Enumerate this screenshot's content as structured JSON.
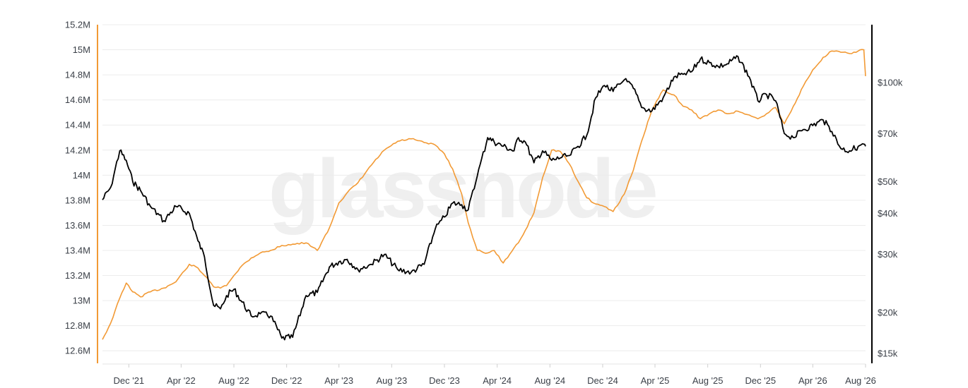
{
  "watermark": "glassnode",
  "chart_data": {
    "type": "line",
    "title": "",
    "xlabel": "",
    "ylabel_left": "",
    "ylabel_right": "",
    "x_ticks": [
      "Dec '21",
      "Apr '22",
      "Aug '22",
      "Dec '22",
      "Apr '23",
      "Aug '23",
      "Dec '23",
      "Apr '24",
      "Aug '24",
      "Dec '24",
      "Apr '25",
      "Aug '25",
      "Dec '25",
      "Apr '26",
      "Aug '26"
    ],
    "y_left": {
      "ticks": [
        "12.6M",
        "12.8M",
        "13M",
        "13.2M",
        "13.4M",
        "13.6M",
        "13.8M",
        "14M",
        "14.2M",
        "14.4M",
        "14.6M",
        "14.8M",
        "15M",
        "15.2M"
      ],
      "range": [
        12.5,
        15.2
      ],
      "unit": "M",
      "color": "#f29a35"
    },
    "y_right": {
      "ticks": [
        "$15k",
        "$20k",
        "$30k",
        "$40k",
        "$50k",
        "$70k",
        "$100k"
      ],
      "tick_values": [
        15000,
        20000,
        30000,
        40000,
        50000,
        70000,
        100000
      ],
      "scale": "log",
      "range": [
        14000,
        150000
      ],
      "color": "#000000"
    },
    "x_range": [
      "2021-10-01",
      "2026-08-01"
    ],
    "grid": "horizontal",
    "legend": "none",
    "series": [
      {
        "axis": "left",
        "color": "#f29a35",
        "x": [
          "2021-10-01",
          "2021-10-20",
          "2021-11-10",
          "2021-11-25",
          "2021-12-10",
          "2021-12-28",
          "2022-01-20",
          "2022-02-20",
          "2022-03-20",
          "2022-04-20",
          "2022-05-10",
          "2022-05-25",
          "2022-06-15",
          "2022-07-01",
          "2022-07-15",
          "2022-08-01",
          "2022-08-20",
          "2022-09-10",
          "2022-10-01",
          "2022-10-25",
          "2022-11-20",
          "2022-12-15",
          "2023-01-15",
          "2023-02-10",
          "2023-03-10",
          "2023-04-01",
          "2023-04-20",
          "2023-05-15",
          "2023-06-15",
          "2023-07-15",
          "2023-08-15",
          "2023-09-15",
          "2023-10-15",
          "2023-11-10",
          "2023-12-01",
          "2023-12-20",
          "2024-01-10",
          "2024-01-25",
          "2024-02-15",
          "2024-03-10",
          "2024-03-25",
          "2024-04-15",
          "2024-05-10",
          "2024-05-20",
          "2024-06-05",
          "2024-06-25",
          "2024-07-15",
          "2024-08-05",
          "2024-08-25",
          "2024-09-15",
          "2024-10-05",
          "2024-10-25",
          "2024-11-15",
          "2024-12-05",
          "2024-12-25",
          "2025-01-20",
          "2025-02-10",
          "2025-03-01",
          "2025-03-25",
          "2025-04-20",
          "2025-05-15",
          "2025-06-05",
          "2025-06-25",
          "2025-07-15",
          "2025-08-05",
          "2025-08-25",
          "2025-09-15",
          "2025-10-10",
          "2025-11-05",
          "2025-11-25",
          "2025-12-15",
          "2026-01-05",
          "2026-01-25",
          "2026-02-15",
          "2026-03-10",
          "2026-04-01",
          "2026-04-25",
          "2026-05-15",
          "2026-06-05",
          "2026-06-25",
          "2026-07-15",
          "2026-07-28",
          "2026-08-01"
        ],
        "values": [
          12.69,
          12.82,
          13.02,
          13.14,
          13.07,
          13.03,
          13.07,
          13.1,
          13.15,
          13.29,
          13.26,
          13.2,
          13.11,
          13.1,
          13.12,
          13.2,
          13.28,
          13.34,
          13.38,
          13.4,
          13.44,
          13.45,
          13.46,
          13.4,
          13.58,
          13.78,
          13.86,
          13.94,
          14.08,
          14.2,
          14.27,
          14.29,
          14.26,
          14.24,
          14.17,
          14.05,
          13.85,
          13.62,
          13.4,
          13.38,
          13.4,
          13.3,
          13.42,
          13.46,
          13.56,
          13.7,
          13.98,
          14.2,
          14.19,
          14.09,
          13.95,
          13.82,
          13.77,
          13.75,
          13.71,
          13.85,
          14.04,
          14.27,
          14.52,
          14.68,
          14.64,
          14.55,
          14.52,
          14.45,
          14.49,
          14.52,
          14.49,
          14.51,
          14.48,
          14.45,
          14.49,
          14.54,
          14.41,
          14.55,
          14.71,
          14.84,
          14.94,
          14.99,
          14.98,
          14.97,
          14.99,
          15.0,
          14.79
        ]
      },
      {
        "axis": "right",
        "color": "#000000",
        "x": [
          "2021-10-01",
          "2021-10-20",
          "2021-11-10",
          "2021-11-25",
          "2021-12-10",
          "2021-12-28",
          "2022-01-20",
          "2022-02-20",
          "2022-03-20",
          "2022-04-20",
          "2022-05-10",
          "2022-05-25",
          "2022-06-15",
          "2022-07-01",
          "2022-07-15",
          "2022-08-01",
          "2022-08-20",
          "2022-09-10",
          "2022-10-01",
          "2022-10-25",
          "2022-11-20",
          "2022-12-15",
          "2023-01-15",
          "2023-02-10",
          "2023-03-10",
          "2023-04-01",
          "2023-04-20",
          "2023-05-15",
          "2023-06-15",
          "2023-07-15",
          "2023-08-15",
          "2023-09-15",
          "2023-10-15",
          "2023-11-10",
          "2023-12-01",
          "2023-12-20",
          "2024-01-10",
          "2024-01-25",
          "2024-02-15",
          "2024-03-10",
          "2024-03-25",
          "2024-04-15",
          "2024-05-10",
          "2024-05-20",
          "2024-06-05",
          "2024-06-25",
          "2024-07-15",
          "2024-08-05",
          "2024-08-25",
          "2024-09-15",
          "2024-10-05",
          "2024-10-25",
          "2024-11-15",
          "2024-12-05",
          "2024-12-25",
          "2025-01-20",
          "2025-02-10",
          "2025-03-01",
          "2025-03-25",
          "2025-04-20",
          "2025-05-15",
          "2025-06-05",
          "2025-06-25",
          "2025-07-15",
          "2025-08-05",
          "2025-08-25",
          "2025-09-15",
          "2025-10-10",
          "2025-11-05",
          "2025-11-25",
          "2025-12-15",
          "2026-01-05",
          "2026-01-25",
          "2026-02-15",
          "2026-03-10",
          "2026-04-01",
          "2026-04-25",
          "2026-05-15",
          "2026-06-05",
          "2026-06-25",
          "2026-07-15",
          "2026-07-28",
          "2026-08-01"
        ],
        "values": [
          44000,
          48000,
          62000,
          58000,
          50000,
          47000,
          42000,
          38000,
          42000,
          40000,
          33000,
          29500,
          21000,
          20500,
          22500,
          23500,
          21500,
          19500,
          19800,
          19500,
          16700,
          16800,
          22500,
          23000,
          27500,
          28500,
          29000,
          27000,
          28000,
          30000,
          27000,
          26500,
          28000,
          36000,
          39000,
          43000,
          42500,
          41000,
          52000,
          68000,
          66000,
          64000,
          62000,
          68000,
          66000,
          57000,
          62000,
          58000,
          59000,
          60000,
          64000,
          69000,
          90000,
          98000,
          94000,
          102000,
          96000,
          84000,
          82000,
          90000,
          104000,
          106000,
          108000,
          118000,
          115000,
          112000,
          114000,
          120000,
          104000,
          88000,
          92000,
          88000,
          70000,
          68000,
          72000,
          74000,
          77000,
          71000,
          63000,
          62000,
          64000,
          65000,
          64000
        ]
      }
    ]
  }
}
